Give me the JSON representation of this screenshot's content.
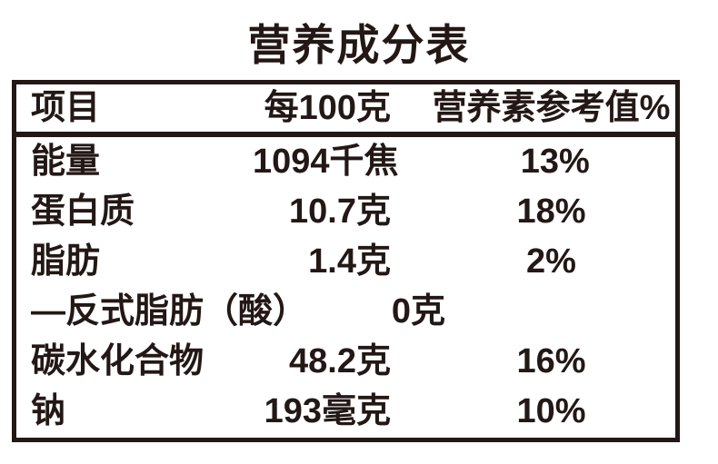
{
  "title": "营养成分表",
  "colors": {
    "ink": "#231815",
    "background": "#ffffff"
  },
  "table": {
    "headers": {
      "item": "项目",
      "per100g": "每100克",
      "nrv": "营养素参考值%"
    },
    "rows": [
      {
        "item": "能量",
        "per100g": "1094千焦",
        "nrv": "13%"
      },
      {
        "item": "蛋白质",
        "per100g": "10.7克",
        "nrv": "18%"
      },
      {
        "item": "脂肪",
        "per100g": "1.4克",
        "nrv": "2%"
      },
      {
        "item": "—反式脂肪（酸）",
        "per100g": "0克",
        "nrv": ""
      },
      {
        "item": "碳水化合物",
        "per100g": "48.2克",
        "nrv": "16%"
      },
      {
        "item": "钠",
        "per100g": "193毫克",
        "nrv": "10%"
      }
    ]
  }
}
